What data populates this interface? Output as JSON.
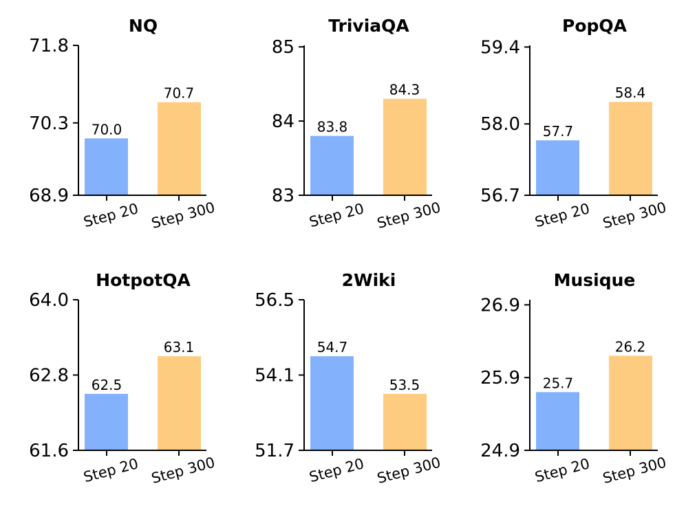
{
  "chart_data": [
    {
      "type": "bar",
      "title": "NQ",
      "categories": [
        "Step 20",
        "Step 300"
      ],
      "values": [
        70.0,
        70.7
      ],
      "value_labels": [
        "70.0",
        "70.7"
      ],
      "yticks": [
        68.9,
        70.3,
        71.8
      ],
      "ytick_labels": [
        "68.9",
        "70.3",
        "71.8"
      ],
      "ylim": [
        68.9,
        71.8
      ],
      "bar_colors": [
        "#84b1fb",
        "#fecc80"
      ],
      "xlabel": "",
      "ylabel": ""
    },
    {
      "type": "bar",
      "title": "TriviaQA",
      "categories": [
        "Step 20",
        "Step 300"
      ],
      "values": [
        83.8,
        84.3
      ],
      "value_labels": [
        "83.8",
        "84.3"
      ],
      "yticks": [
        83,
        84,
        85
      ],
      "ytick_labels": [
        "83",
        "84",
        "85"
      ],
      "ylim": [
        83.0,
        85.02
      ],
      "bar_colors": [
        "#84b1fb",
        "#fecc80"
      ],
      "xlabel": "",
      "ylabel": ""
    },
    {
      "type": "bar",
      "title": "PopQA",
      "categories": [
        "Step 20",
        "Step 300"
      ],
      "values": [
        57.7,
        58.4
      ],
      "value_labels": [
        "57.7",
        "58.4"
      ],
      "yticks": [
        56.7,
        58.0,
        59.4
      ],
      "ytick_labels": [
        "56.7",
        "58.0",
        "59.4"
      ],
      "ylim": [
        56.7,
        59.43
      ],
      "bar_colors": [
        "#84b1fb",
        "#fecc80"
      ],
      "xlabel": "",
      "ylabel": ""
    },
    {
      "type": "bar",
      "title": "HotpotQA",
      "categories": [
        "Step 20",
        "Step 300"
      ],
      "values": [
        62.5,
        63.1
      ],
      "value_labels": [
        "62.5",
        "63.1"
      ],
      "yticks": [
        61.6,
        62.8,
        64.0
      ],
      "ytick_labels": [
        "61.6",
        "62.8",
        "64.0"
      ],
      "ylim": [
        61.6,
        64.0
      ],
      "bar_colors": [
        "#84b1fb",
        "#fecc80"
      ],
      "xlabel": "",
      "ylabel": ""
    },
    {
      "type": "bar",
      "title": "2Wiki",
      "categories": [
        "Step 20",
        "Step 300"
      ],
      "values": [
        54.7,
        53.5
      ],
      "value_labels": [
        "54.7",
        "53.5"
      ],
      "yticks": [
        51.7,
        54.1,
        56.5
      ],
      "ytick_labels": [
        "51.7",
        "54.1",
        "56.5"
      ],
      "ylim": [
        51.7,
        56.5
      ],
      "bar_colors": [
        "#84b1fb",
        "#fecc80"
      ],
      "xlabel": "",
      "ylabel": ""
    },
    {
      "type": "bar",
      "title": "Musique",
      "categories": [
        "Step 20",
        "Step 300"
      ],
      "values": [
        25.7,
        26.2
      ],
      "value_labels": [
        "25.7",
        "26.2"
      ],
      "yticks": [
        24.9,
        25.9,
        26.9
      ],
      "ytick_labels": [
        "24.9",
        "25.9",
        "26.9"
      ],
      "ylim": [
        24.9,
        26.97
      ],
      "bar_colors": [
        "#84b1fb",
        "#fecc80"
      ],
      "xlabel": "",
      "ylabel": ""
    }
  ]
}
